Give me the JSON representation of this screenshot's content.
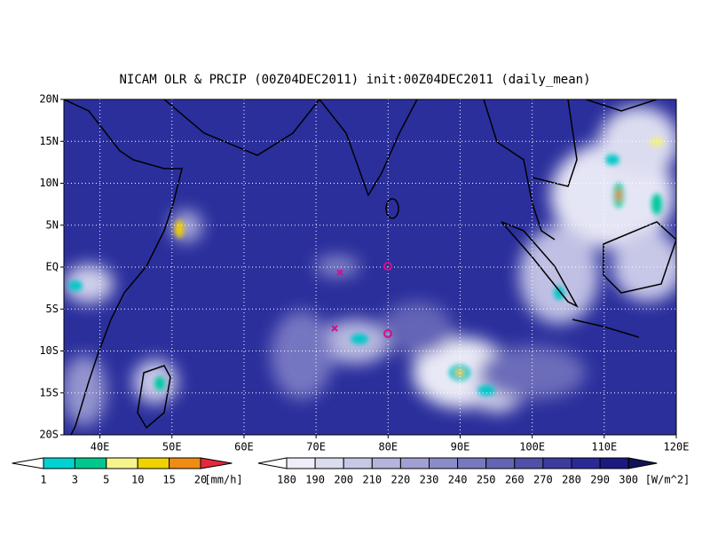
{
  "title": "NICAM OLR & PRCIP (00Z04DEC2011) init:00Z04DEC2011 (daily_mean)",
  "lat_labels": [
    "20N",
    "15N",
    "10N",
    "5N",
    "EQ",
    "5S",
    "10S",
    "15S",
    "20S"
  ],
  "lon_labels": [
    "40E",
    "50E",
    "60E",
    "70E",
    "80E",
    "90E",
    "100E",
    "110E",
    "120E"
  ],
  "precip_bar": {
    "labels": [
      "1",
      "3",
      "5",
      "10",
      "15",
      "20"
    ],
    "unit": "[mm/h]"
  },
  "olr_bar": {
    "labels": [
      "180",
      "190",
      "200",
      "210",
      "220",
      "230",
      "240",
      "250",
      "260",
      "270",
      "280",
      "290",
      "300"
    ],
    "unit": "[W/m^2]"
  }
}
